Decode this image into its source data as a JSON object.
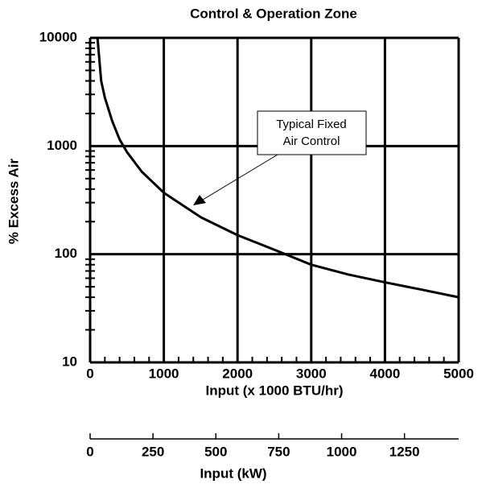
{
  "chart_data": {
    "type": "line",
    "title": "Control & Operation Zone",
    "x_label": "Input (x 1000 BTU/hr)",
    "y_label": "% Excess Air",
    "x2_label": "Input (kW)",
    "x": [
      100,
      150,
      200,
      300,
      400,
      500,
      700,
      1000,
      1500,
      2000,
      2500,
      3000,
      3500,
      4000,
      4500,
      5000
    ],
    "series": [
      {
        "name": "Typical Fixed Air Control",
        "color": "#000000",
        "values": [
          10000,
          4000,
          2800,
          1700,
          1150,
          880,
          580,
          370,
          220,
          150,
          110,
          80,
          65,
          55,
          47,
          40
        ]
      }
    ],
    "xlim": [
      0,
      5000
    ],
    "xticks": [
      0,
      1000,
      2000,
      3000,
      4000,
      5000
    ],
    "xminorticks": [
      200,
      400,
      600,
      800,
      1200,
      1400,
      1600,
      1800,
      2200,
      2400,
      2600,
      2800,
      3200,
      3400,
      3600,
      3800,
      4200,
      4400,
      4600,
      4800
    ],
    "ylim": [
      10,
      10000
    ],
    "yticks": [
      10,
      100,
      1000,
      10000
    ],
    "ylog": true,
    "yminorticks": [
      20,
      30,
      40,
      50,
      60,
      70,
      80,
      90,
      200,
      300,
      400,
      500,
      600,
      700,
      800,
      900,
      2000,
      3000,
      4000,
      5000,
      6000,
      7000,
      8000,
      9000
    ],
    "x2lim": [
      0,
      1465.4
    ],
    "x2ticks": [
      0,
      250,
      500,
      750,
      1000,
      1250
    ],
    "grid": true,
    "annotation": {
      "lines": [
        "Typical Fixed",
        "Air Control"
      ]
    }
  }
}
